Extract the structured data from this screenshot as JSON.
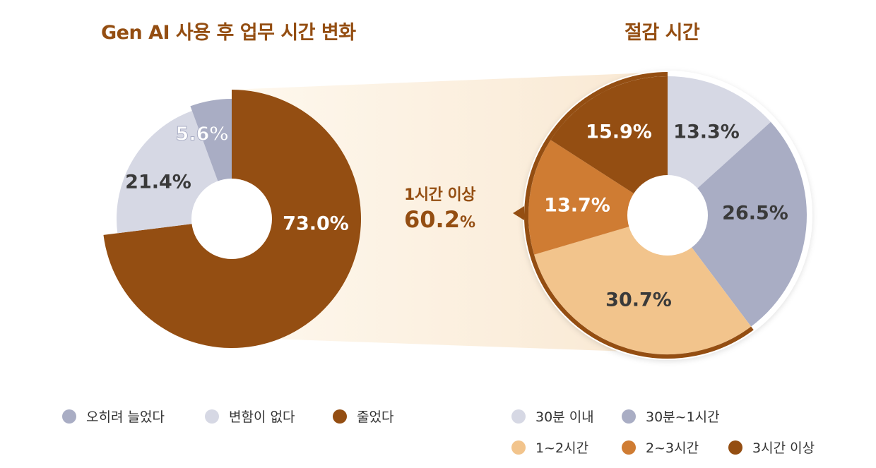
{
  "titles": {
    "left": "Gen AI 사용 후 업무 시간 변화",
    "right": "절감 시간"
  },
  "callout": {
    "line1": "1시간 이상",
    "value": "60.2",
    "unit": "%"
  },
  "colors": {
    "brown": "#944e12",
    "orange": "#cf7c33",
    "peach": "#f2c48c",
    "slate": "#a9adc4",
    "lightslate": "#d6d8e4",
    "cream": "#fdf5e8"
  },
  "left_labels": [
    "5.6%",
    "21.4%",
    "73.0%"
  ],
  "right_labels": [
    "13.3%",
    "26.5%",
    "30.7%",
    "13.7%",
    "15.9%"
  ],
  "legend_left": [
    {
      "label": "오히려 늘었다",
      "color": "#a9adc4"
    },
    {
      "label": "변함이 없다",
      "color": "#d6d8e4"
    },
    {
      "label": "줄었다",
      "color": "#944e12"
    }
  ],
  "legend_right": [
    {
      "label": "30분 이내",
      "color": "#d6d8e4"
    },
    {
      "label": "30분~1시간",
      "color": "#a9adc4"
    },
    {
      "label": "1~2시간",
      "color": "#f2c48c"
    },
    {
      "label": "2~3시간",
      "color": "#cf7c33"
    },
    {
      "label": "3시간 이상",
      "color": "#944e12"
    }
  ],
  "chart_data": [
    {
      "type": "pie",
      "title": "Gen AI 사용 후 업무 시간 변화",
      "categories": [
        "오히려 늘었다",
        "변함이 없다",
        "줄었다"
      ],
      "values": [
        5.6,
        21.4,
        73.0
      ],
      "unit": "%",
      "legend_position": "bottom"
    },
    {
      "type": "pie",
      "title": "절감 시간",
      "categories": [
        "30분 이내",
        "30분~1시간",
        "1~2시간",
        "2~3시간",
        "3시간 이상"
      ],
      "values": [
        13.3,
        26.5,
        30.7,
        13.7,
        15.9
      ],
      "unit": "%",
      "annotation": "1시간 이상 60.2%",
      "legend_position": "bottom"
    }
  ]
}
